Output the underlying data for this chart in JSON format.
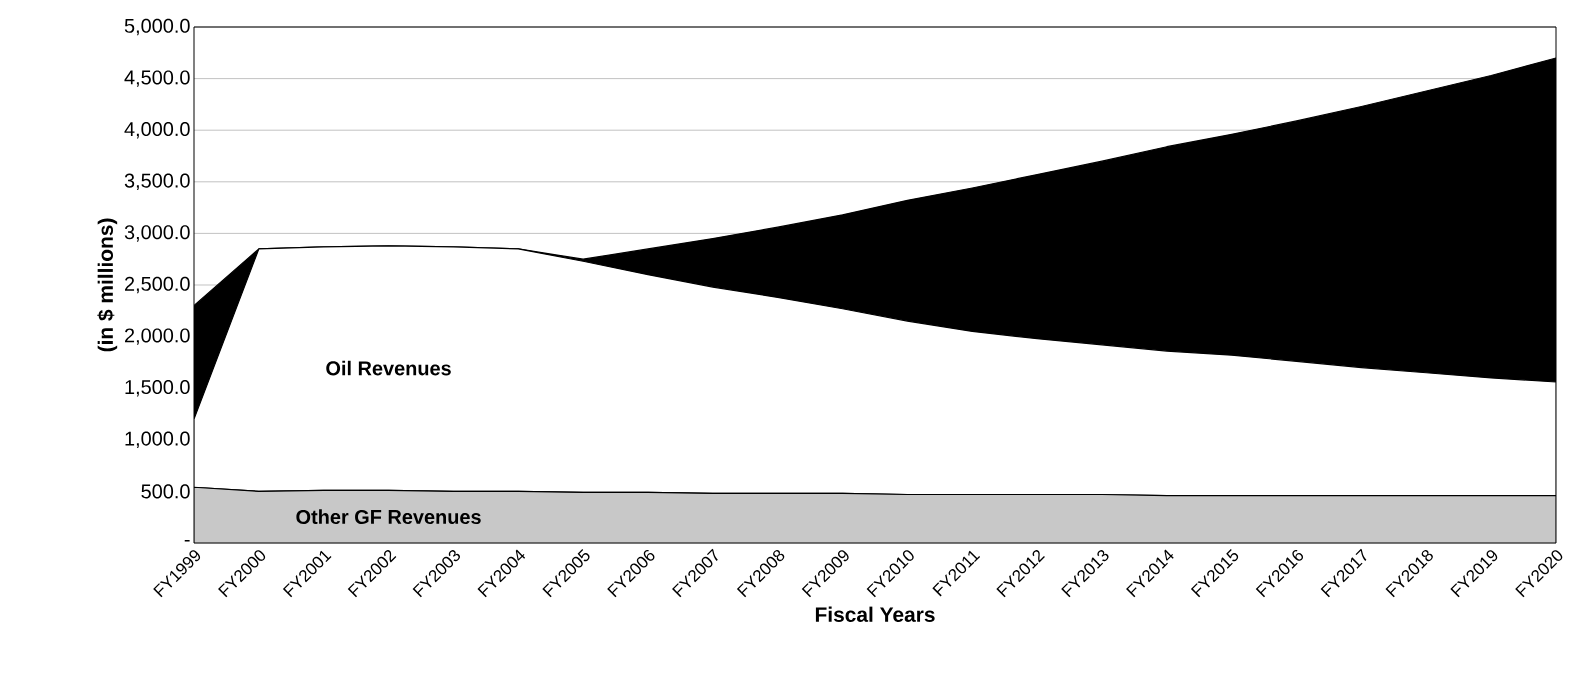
{
  "chart_data": {
    "type": "area",
    "stacked": true,
    "xlabel": "Fiscal Years",
    "ylabel": "(in $ millions)",
    "categories": [
      "FY1999",
      "FY2000",
      "FY2001",
      "FY2002",
      "FY2003",
      "FY2004",
      "FY2005",
      "FY2006",
      "FY2007",
      "FY2008",
      "FY2009",
      "FY2010",
      "FY2011",
      "FY2012",
      "FY2013",
      "FY2014",
      "FY2015",
      "FY2016",
      "FY2017",
      "FY2018",
      "FY2019",
      "FY2020"
    ],
    "series": [
      {
        "name": "Other GF Revenues",
        "color": "#c8c8c8",
        "values": [
          540,
          500,
          510,
          510,
          500,
          500,
          490,
          490,
          480,
          480,
          480,
          470,
          470,
          470,
          470,
          460,
          460,
          460,
          460,
          460,
          460,
          460
        ]
      },
      {
        "name": "Oil Revenues",
        "color": "#ffffff",
        "values": [
          660,
          2350,
          2360,
          2370,
          2370,
          2350,
          2240,
          2110,
          2000,
          1900,
          1790,
          1680,
          1580,
          1510,
          1450,
          1400,
          1360,
          1300,
          1240,
          1190,
          1140,
          1100
        ]
      },
      {
        "color": "#000000",
        "values": [
          1100,
          0,
          0,
          0,
          0,
          0,
          20,
          250,
          470,
          680,
          910,
          1170,
          1390,
          1590,
          1780,
          1980,
          2140,
          2330,
          2530,
          2730,
          2930,
          3140
        ]
      }
    ],
    "ylim": [
      0,
      5000
    ],
    "yticks": [
      {
        "value": 0,
        "label": "-"
      },
      {
        "value": 500,
        "label": "500.0"
      },
      {
        "value": 1000,
        "label": "1,000.0"
      },
      {
        "value": 1500,
        "label": "1,500.0"
      },
      {
        "value": 2000,
        "label": "2,000.0"
      },
      {
        "value": 2500,
        "label": "2,500.0"
      },
      {
        "value": 3000,
        "label": "3,000.0"
      },
      {
        "value": 3500,
        "label": "3,500.0"
      },
      {
        "value": 4000,
        "label": "4,000.0"
      },
      {
        "value": 4500,
        "label": "4,500.0"
      },
      {
        "value": 5000,
        "label": "5,000.0"
      }
    ],
    "grid": "y"
  }
}
